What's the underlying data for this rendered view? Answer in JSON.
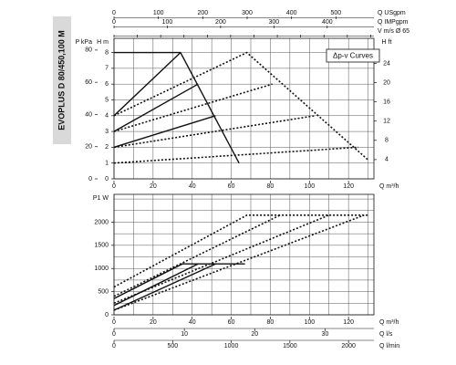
{
  "chart_data": [
    {
      "type": "line",
      "title": "EVOPLUS D 80/450,100 M",
      "annotation": "Δp-v Curves",
      "grid": true,
      "xgrid": [
        0,
        10,
        20,
        30,
        40,
        50,
        60,
        70,
        80,
        90,
        100,
        110,
        120,
        130
      ],
      "ygrid": [
        0,
        1,
        2,
        3,
        4,
        5,
        6,
        7,
        8
      ],
      "axes": [
        {
          "label": "Q m³/h",
          "side": "bottom",
          "lim": [
            0,
            133
          ],
          "ticks": [
            0,
            20,
            40,
            60,
            80,
            100,
            120
          ]
        },
        {
          "label": "H m",
          "side": "left",
          "lim": [
            0,
            8.9
          ],
          "ticks": [
            0,
            1,
            2,
            3,
            4,
            5,
            6,
            7,
            8
          ]
        },
        {
          "label": "P kPa",
          "side": "left",
          "lim": [
            0,
            87.3
          ],
          "ticks": [
            0,
            20,
            40,
            60,
            80
          ]
        },
        {
          "label": "H ft",
          "side": "right",
          "lim": [
            0,
            29.2
          ],
          "ticks": [
            4,
            8,
            12,
            16,
            20,
            24
          ]
        },
        {
          "label": "Q USgpm",
          "side": "top",
          "lim": [
            0,
            585.6
          ],
          "ticks": [
            0,
            100,
            200,
            300,
            400,
            500
          ]
        },
        {
          "label": "Q IMPgpm",
          "side": "top",
          "lim": [
            0,
            487.6
          ],
          "ticks": [
            0,
            100,
            200,
            300,
            400
          ]
        },
        {
          "label": "V m/s Ø 65",
          "side": "top",
          "lim": [
            0,
            11.14
          ],
          "ticks": [
            0,
            1,
            2,
            3,
            4,
            5,
            6,
            7,
            8,
            9,
            10,
            11
          ],
          "tick_labels": false
        }
      ],
      "series": [
        {
          "color": "#111111",
          "dash": "solid",
          "x": [
            0,
            34,
            64
          ],
          "values": [
            8,
            8,
            1.0
          ]
        },
        {
          "color": "#111111",
          "dash": "solid",
          "x": [
            0,
            34
          ],
          "values": [
            4,
            8
          ]
        },
        {
          "color": "#111111",
          "dash": "solid",
          "x": [
            0,
            43
          ],
          "values": [
            3,
            6
          ]
        },
        {
          "color": "#111111",
          "dash": "solid",
          "x": [
            0,
            52
          ],
          "values": [
            2,
            4
          ]
        },
        {
          "color": "#111111",
          "dash": "dotted",
          "x": [
            0,
            68,
            130
          ],
          "values": [
            4,
            8,
            1.2
          ]
        },
        {
          "color": "#111111",
          "dash": "dotted",
          "x": [
            0,
            81
          ],
          "values": [
            3,
            6
          ]
        },
        {
          "color": "#111111",
          "dash": "dotted",
          "x": [
            0,
            103
          ],
          "values": [
            2,
            4
          ]
        },
        {
          "color": "#111111",
          "dash": "dotted",
          "x": [
            0,
            125
          ],
          "values": [
            1,
            2
          ]
        }
      ]
    },
    {
      "type": "line",
      "grid": true,
      "xgrid": [
        0,
        10,
        20,
        30,
        40,
        50,
        60,
        70,
        80,
        90,
        100,
        110,
        120,
        130
      ],
      "ygrid": [
        0,
        250,
        500,
        750,
        1000,
        1250,
        1500,
        1750,
        2000,
        2250,
        2500
      ],
      "axes": [
        {
          "label": "Q m³/h",
          "side": "bottom",
          "lim": [
            0,
            133
          ],
          "ticks": [
            0,
            20,
            40,
            60,
            80,
            100,
            120
          ]
        },
        {
          "label": "P1 W",
          "side": "left",
          "lim": [
            0,
            2600
          ],
          "ticks": [
            0,
            500,
            1000,
            1500,
            2000
          ]
        },
        {
          "label": "Q l/s",
          "side": "bottom",
          "lim": [
            0,
            36.94
          ],
          "ticks": [
            0,
            10,
            20,
            30
          ]
        },
        {
          "label": "Q l/min",
          "side": "bottom",
          "lim": [
            0,
            2216.7
          ],
          "ticks": [
            0,
            500,
            1000,
            1500,
            2000
          ]
        }
      ],
      "series": [
        {
          "color": "#111111",
          "dash": "solid",
          "x": [
            0,
            35,
            67
          ],
          "values": [
            350,
            1100,
            1100
          ]
        },
        {
          "color": "#111111",
          "dash": "solid",
          "x": [
            0,
            43
          ],
          "values": [
            200,
            1100
          ]
        },
        {
          "color": "#111111",
          "dash": "solid",
          "x": [
            0,
            52
          ],
          "values": [
            100,
            1100
          ]
        },
        {
          "color": "#111111",
          "dash": "dotted",
          "x": [
            0,
            68,
            130
          ],
          "values": [
            600,
            2150,
            2150
          ]
        },
        {
          "color": "#111111",
          "dash": "dotted",
          "x": [
            0,
            85
          ],
          "values": [
            400,
            2150
          ]
        },
        {
          "color": "#111111",
          "dash": "dotted",
          "x": [
            0,
            110
          ],
          "values": [
            250,
            2150
          ]
        },
        {
          "color": "#111111",
          "dash": "dotted",
          "x": [
            0,
            128
          ],
          "values": [
            100,
            2150
          ]
        }
      ]
    }
  ]
}
